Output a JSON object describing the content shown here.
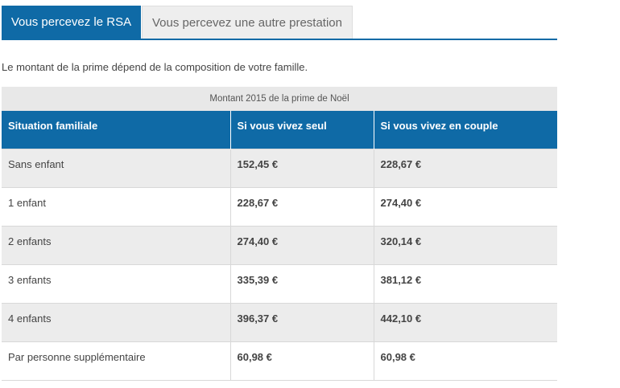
{
  "tabs": [
    {
      "label": "Vous percevez le RSA",
      "active": true
    },
    {
      "label": "Vous percevez une autre prestation",
      "active": false
    }
  ],
  "intro": "Le montant de la prime dépend de la composition de votre famille.",
  "table": {
    "caption": "Montant 2015 de la prime de Noël",
    "headers": [
      "Situation familiale",
      "Si vous vivez seul",
      "Si vous vivez en couple"
    ],
    "rows": [
      [
        "Sans enfant",
        "152,45 €",
        "228,67 €"
      ],
      [
        "1 enfant",
        "228,67 €",
        "274,40 €"
      ],
      [
        "2 enfants",
        "274,40 €",
        "320,14 €"
      ],
      [
        "3 enfants",
        "335,39 €",
        "381,12 €"
      ],
      [
        "4 enfants",
        "396,37 €",
        "442,10 €"
      ],
      [
        "Par personne supplémentaire",
        "60,98 €",
        "60,98 €"
      ]
    ]
  },
  "colors": {
    "accent": "#0f6aa6",
    "stripe": "#ececec"
  }
}
